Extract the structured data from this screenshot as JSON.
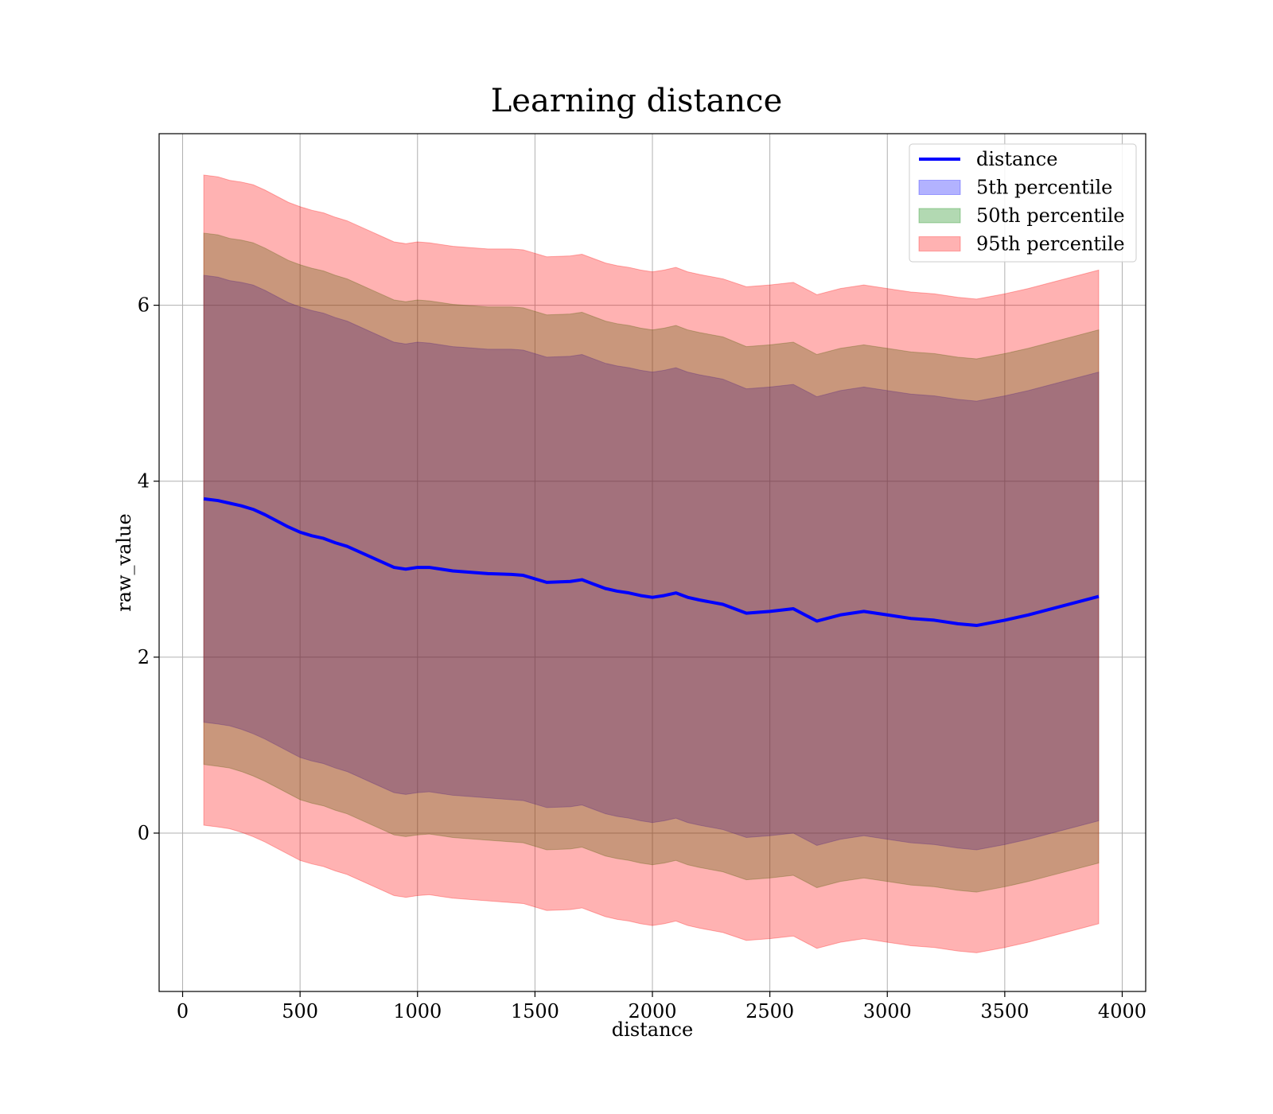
{
  "chart_data": {
    "type": "line",
    "title": "Learning distance",
    "xlabel": "distance",
    "ylabel": "raw_value",
    "xlim": [
      -100,
      4100
    ],
    "ylim": [
      -1.8,
      7.95
    ],
    "xticks": [
      0,
      500,
      1000,
      1500,
      2000,
      2500,
      3000,
      3500,
      4000
    ],
    "yticks": [
      0,
      2,
      4,
      6
    ],
    "grid": true,
    "legend_position": "top-right",
    "x": [
      90,
      150,
      200,
      250,
      300,
      350,
      400,
      450,
      500,
      550,
      600,
      650,
      700,
      750,
      800,
      850,
      900,
      950,
      1000,
      1050,
      1100,
      1150,
      1200,
      1300,
      1400,
      1450,
      1550,
      1650,
      1700,
      1750,
      1800,
      1850,
      1900,
      1950,
      2000,
      2050,
      2100,
      2150,
      2200,
      2300,
      2400,
      2500,
      2600,
      2700,
      2800,
      2900,
      3000,
      3100,
      3200,
      3300,
      3380,
      3500,
      3600,
      3700,
      3800,
      3900
    ],
    "series": [
      {
        "name": "distance",
        "kind": "line",
        "color": "#0000ff",
        "values": [
          3.8,
          3.78,
          3.75,
          3.72,
          3.68,
          3.62,
          3.55,
          3.48,
          3.42,
          3.38,
          3.35,
          3.3,
          3.26,
          3.2,
          3.14,
          3.08,
          3.02,
          3.0,
          3.02,
          3.02,
          3.0,
          2.98,
          2.97,
          2.95,
          2.94,
          2.93,
          2.85,
          2.86,
          2.88,
          2.83,
          2.78,
          2.75,
          2.73,
          2.7,
          2.68,
          2.7,
          2.73,
          2.68,
          2.65,
          2.6,
          2.5,
          2.52,
          2.55,
          2.41,
          2.48,
          2.52,
          2.48,
          2.44,
          2.42,
          2.38,
          2.36,
          2.42,
          2.48,
          2.55,
          2.62,
          2.69
        ]
      },
      {
        "name": "5th percentile",
        "kind": "band",
        "color": "#0000ff",
        "lower": [
          1.26,
          1.24,
          1.22,
          1.18,
          1.13,
          1.07,
          1.0,
          0.93,
          0.86,
          0.82,
          0.79,
          0.74,
          0.7,
          0.64,
          0.58,
          0.52,
          0.46,
          0.44,
          0.46,
          0.47,
          0.45,
          0.43,
          0.42,
          0.4,
          0.38,
          0.37,
          0.29,
          0.3,
          0.32,
          0.27,
          0.22,
          0.19,
          0.17,
          0.14,
          0.12,
          0.14,
          0.17,
          0.12,
          0.09,
          0.04,
          -0.05,
          -0.03,
          0.0,
          -0.14,
          -0.07,
          -0.03,
          -0.07,
          -0.11,
          -0.13,
          -0.17,
          -0.19,
          -0.13,
          -0.07,
          0.0,
          0.07,
          0.14
        ],
        "upper": [
          6.34,
          6.32,
          6.28,
          6.26,
          6.23,
          6.17,
          6.1,
          6.03,
          5.98,
          5.94,
          5.91,
          5.86,
          5.82,
          5.76,
          5.7,
          5.64,
          5.58,
          5.56,
          5.58,
          5.57,
          5.55,
          5.53,
          5.52,
          5.5,
          5.5,
          5.49,
          5.41,
          5.42,
          5.44,
          5.39,
          5.34,
          5.31,
          5.29,
          5.26,
          5.24,
          5.26,
          5.29,
          5.24,
          5.21,
          5.16,
          5.05,
          5.07,
          5.1,
          4.96,
          5.03,
          5.07,
          5.03,
          4.99,
          4.97,
          4.93,
          4.91,
          4.97,
          5.03,
          5.1,
          5.17,
          5.24
        ]
      },
      {
        "name": "50th percentile",
        "kind": "band",
        "color": "#008000",
        "lower": [
          0.78,
          0.76,
          0.74,
          0.7,
          0.65,
          0.59,
          0.52,
          0.45,
          0.38,
          0.34,
          0.31,
          0.26,
          0.22,
          0.16,
          0.1,
          0.04,
          -0.02,
          -0.04,
          -0.02,
          -0.01,
          -0.03,
          -0.05,
          -0.06,
          -0.08,
          -0.1,
          -0.11,
          -0.19,
          -0.18,
          -0.16,
          -0.21,
          -0.26,
          -0.29,
          -0.31,
          -0.34,
          -0.36,
          -0.34,
          -0.31,
          -0.36,
          -0.39,
          -0.44,
          -0.53,
          -0.51,
          -0.48,
          -0.62,
          -0.55,
          -0.51,
          -0.55,
          -0.59,
          -0.61,
          -0.65,
          -0.67,
          -0.61,
          -0.55,
          -0.48,
          -0.41,
          -0.34
        ],
        "upper": [
          6.82,
          6.8,
          6.76,
          6.74,
          6.71,
          6.65,
          6.58,
          6.51,
          6.46,
          6.42,
          6.39,
          6.34,
          6.3,
          6.24,
          6.18,
          6.12,
          6.06,
          6.04,
          6.06,
          6.05,
          6.03,
          6.01,
          6.0,
          5.98,
          5.98,
          5.97,
          5.89,
          5.9,
          5.92,
          5.87,
          5.82,
          5.79,
          5.77,
          5.74,
          5.72,
          5.74,
          5.77,
          5.72,
          5.69,
          5.64,
          5.53,
          5.55,
          5.58,
          5.44,
          5.51,
          5.55,
          5.51,
          5.47,
          5.45,
          5.41,
          5.39,
          5.45,
          5.51,
          5.58,
          5.65,
          5.72
        ]
      },
      {
        "name": "95th percentile",
        "kind": "band",
        "color": "#ff0000",
        "lower": [
          0.09,
          0.07,
          0.05,
          0.01,
          -0.04,
          -0.1,
          -0.17,
          -0.24,
          -0.31,
          -0.35,
          -0.38,
          -0.43,
          -0.47,
          -0.53,
          -0.59,
          -0.65,
          -0.71,
          -0.73,
          -0.71,
          -0.7,
          -0.72,
          -0.74,
          -0.75,
          -0.77,
          -0.79,
          -0.8,
          -0.88,
          -0.87,
          -0.85,
          -0.9,
          -0.95,
          -0.98,
          -1.0,
          -1.03,
          -1.05,
          -1.03,
          -1.0,
          -1.05,
          -1.08,
          -1.13,
          -1.22,
          -1.2,
          -1.17,
          -1.31,
          -1.24,
          -1.2,
          -1.24,
          -1.28,
          -1.3,
          -1.34,
          -1.36,
          -1.3,
          -1.24,
          -1.17,
          -1.1,
          -1.03
        ],
        "upper": [
          7.48,
          7.46,
          7.42,
          7.4,
          7.37,
          7.31,
          7.24,
          7.17,
          7.12,
          7.08,
          7.05,
          7.0,
          6.96,
          6.9,
          6.84,
          6.78,
          6.72,
          6.7,
          6.72,
          6.71,
          6.69,
          6.67,
          6.66,
          6.64,
          6.64,
          6.63,
          6.55,
          6.56,
          6.58,
          6.53,
          6.48,
          6.45,
          6.43,
          6.4,
          6.38,
          6.4,
          6.43,
          6.38,
          6.35,
          6.3,
          6.21,
          6.23,
          6.26,
          6.12,
          6.19,
          6.23,
          6.19,
          6.15,
          6.13,
          6.09,
          6.07,
          6.13,
          6.19,
          6.26,
          6.33,
          6.4
        ]
      }
    ]
  }
}
